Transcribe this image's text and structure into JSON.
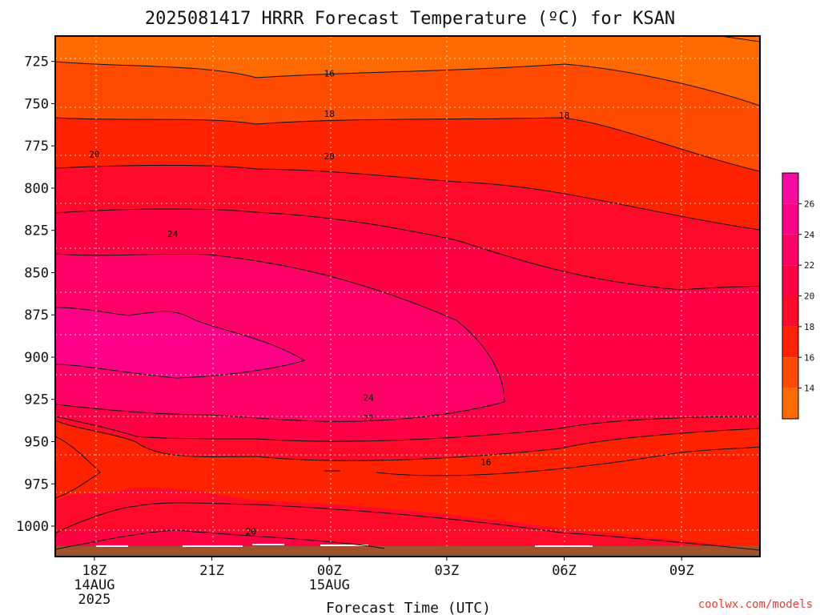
{
  "title": "2025081417 HRRR Forecast Temperature (ºC) for KSAN",
  "credit": "coolwx.com/models",
  "chart_data": {
    "type": "heatmap",
    "title": "2025081417 HRRR Forecast Temperature (ºC) for KSAN",
    "xlabel": "Forecast Time (UTC)",
    "ylabel": "",
    "x_ticks": [
      {
        "label": "18Z",
        "sub": [
          "14AUG",
          "2025"
        ],
        "hour": 0
      },
      {
        "label": "21Z",
        "sub": [],
        "hour": 3
      },
      {
        "label": "00Z",
        "sub": [
          "15AUG"
        ],
        "hour": 6
      },
      {
        "label": "03Z",
        "sub": [],
        "hour": 9
      },
      {
        "label": "06Z",
        "sub": [],
        "hour": 12
      },
      {
        "label": "09Z",
        "sub": [],
        "hour": 15
      }
    ],
    "xlim": [
      -1,
      17
    ],
    "y_ticks": [
      725,
      750,
      775,
      800,
      825,
      850,
      875,
      900,
      925,
      950,
      975,
      1000
    ],
    "ylim": [
      710,
      1018
    ],
    "y_axis": "pressure (hPa), inverted",
    "colorbar": {
      "labels": [
        "14",
        "16",
        "18",
        "20",
        "22",
        "24",
        "26"
      ],
      "levels": [
        12,
        14,
        16,
        18,
        20,
        22,
        24,
        26,
        28
      ],
      "colors": [
        "#ff6a00",
        "#ff4b00",
        "#ff2200",
        "#ff0a2a",
        "#ff0045",
        "#ff0066",
        "#ff0089",
        "#f70aa0"
      ]
    },
    "contour_labels": [
      {
        "value": "16",
        "x": 6.0,
        "p": 732
      },
      {
        "value": "18",
        "x": 6.0,
        "p": 756
      },
      {
        "value": "18",
        "x": 12.0,
        "p": 757
      },
      {
        "value": "20",
        "x": 0.0,
        "p": 780
      },
      {
        "value": "20",
        "x": 6.0,
        "p": 781
      },
      {
        "value": "24",
        "x": 2.0,
        "p": 827
      },
      {
        "value": "24",
        "x": 7.0,
        "p": 924
      },
      {
        "value": "22",
        "x": 7.0,
        "p": 936
      },
      {
        "value": "16",
        "x": 10.0,
        "p": 962
      },
      {
        "value": "20",
        "x": 4.0,
        "p": 1003
      }
    ],
    "grid": true,
    "surface": "brown band at bottom"
  }
}
